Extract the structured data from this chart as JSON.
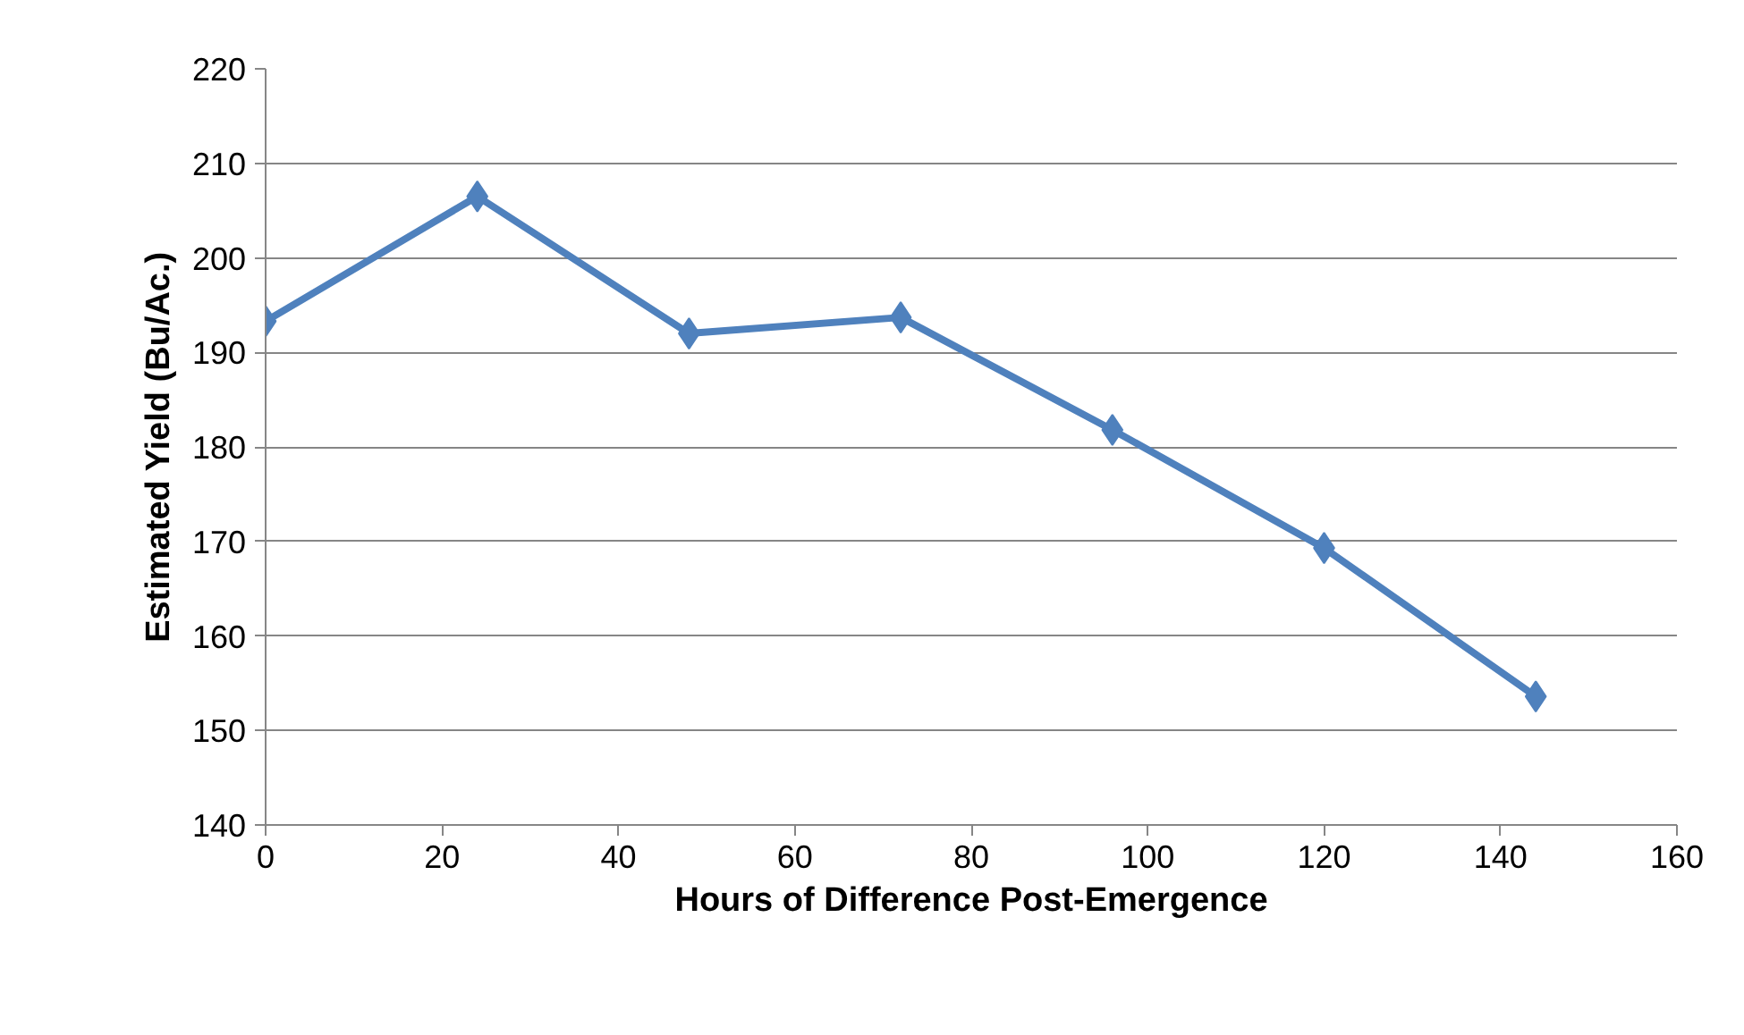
{
  "chart_data": {
    "type": "line",
    "xlabel": "Hours of Difference Post-Emergence",
    "ylabel": "Estimated Yield (Bu/Ac.)",
    "x": [
      0,
      24,
      48,
      72,
      96,
      120,
      144
    ],
    "series": [
      {
        "color": "#4f81bd",
        "values": [
          193.3,
          206.5,
          192.0,
          193.7,
          181.8,
          169.3,
          153.6
        ]
      }
    ],
    "xlim": [
      0,
      160
    ],
    "xticks": [
      0,
      20,
      40,
      60,
      80,
      100,
      120,
      140,
      160
    ],
    "ylim": [
      140,
      220
    ],
    "yticks": [
      140,
      150,
      160,
      170,
      180,
      190,
      200,
      210,
      220
    ],
    "grid": "y",
    "marker": "diamond",
    "line_style": "solid"
  }
}
